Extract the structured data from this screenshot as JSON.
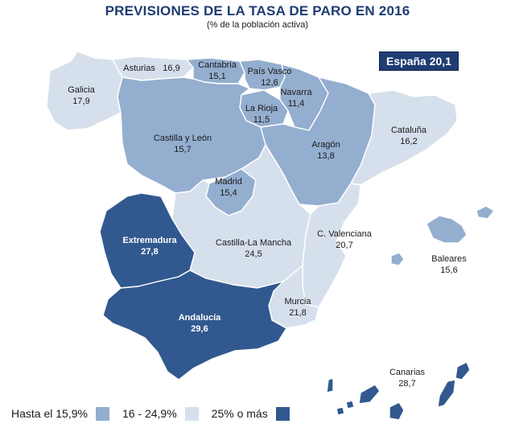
{
  "header": {
    "title": "PREVISIONES DE LA TASA DE PARO EN 2016",
    "subtitle": "(% de la población activa)"
  },
  "badge": {
    "label": "España 20,1"
  },
  "colors": {
    "low": "#d6e0ec",
    "mid": "#94aecf",
    "high": "#31598f",
    "outline": "#ffffff",
    "title": "#1f3c73"
  },
  "legend": [
    {
      "label": "Hasta el 15,9%",
      "color": "#94aecf"
    },
    {
      "label": "16 - 24,9%",
      "color": "#d6e0ec"
    },
    {
      "label": "25% o más",
      "color": "#31598f"
    }
  ],
  "regions": {
    "galicia": {
      "name": "Galicia",
      "value": "17,9"
    },
    "asturias": {
      "name": "Asturias",
      "value": "16,9"
    },
    "cantabria": {
      "name": "Cantabria",
      "value": "15,1"
    },
    "pais_vasco": {
      "name": "País Vasco",
      "value": "12,6"
    },
    "navarra": {
      "name": "Navarra",
      "value": "11,4"
    },
    "la_rioja": {
      "name": "La Rioja",
      "value": "11,5"
    },
    "aragon": {
      "name": "Aragón",
      "value": "13,8"
    },
    "cataluna": {
      "name": "Cataluña",
      "value": "16,2"
    },
    "castilla_leon": {
      "name": "Castilla  y  León",
      "value": "15,7"
    },
    "madrid": {
      "name": "Madrid",
      "value": "15,4"
    },
    "castilla_la_mancha": {
      "name": "Castilla-La Mancha",
      "value": "24,5"
    },
    "c_valenciana": {
      "name": "C. Valenciana",
      "value": "20,7"
    },
    "baleares": {
      "name": "Baleares",
      "value": "15,6"
    },
    "extremadura": {
      "name": "Extremadura",
      "value": "27,8"
    },
    "andalucia": {
      "name": "Andalucía",
      "value": "29,6"
    },
    "murcia": {
      "name": "Murcia",
      "value": "21,8"
    },
    "canarias": {
      "name": "Canarias",
      "value": "28,7"
    }
  }
}
